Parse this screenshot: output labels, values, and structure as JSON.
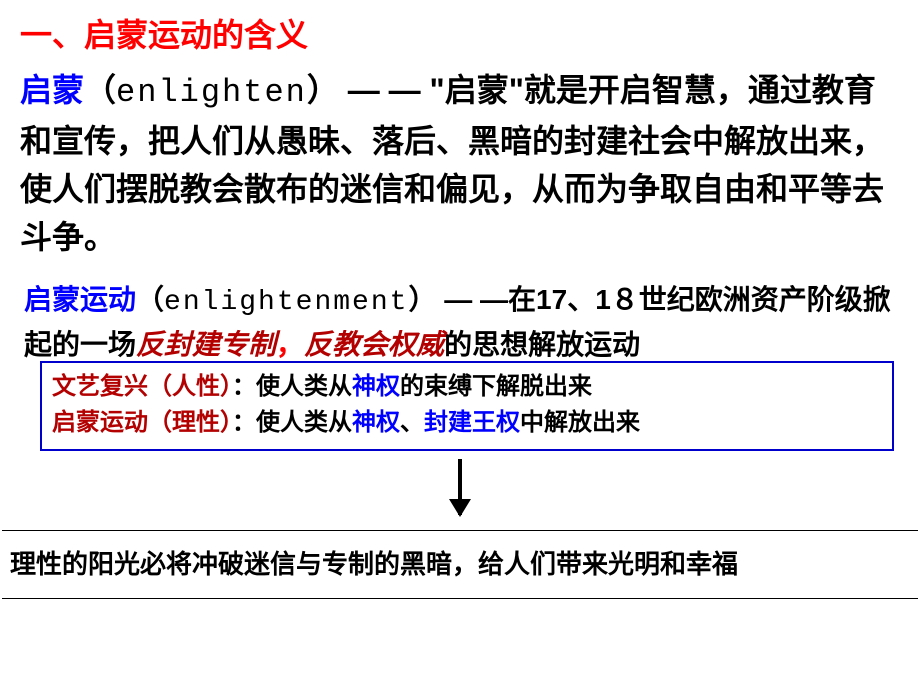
{
  "heading": {
    "prefix": "一、",
    "title": "启蒙运动的含义",
    "color": "#ff0000"
  },
  "para1": {
    "term": "启蒙",
    "term_color": "#0000ff",
    "paren_open": "（",
    "en": "enlighten",
    "paren_close": "）",
    "dash": " — — ",
    "quote_open": "\"",
    "term2": "启蒙",
    "quote_close": "\"",
    "rest": "就是开启智慧，通过教育和宣传，把人们从愚昧、落后、黑暗的封建社会中解放出来，使人们摆脱教会散布的迷信和偏见，从而为争取自由和平等去斗争。"
  },
  "para2": {
    "term": "启蒙运动",
    "term_color": "#0000ff",
    "paren_open": "（",
    "en": "enlightenment",
    "paren_close": "）",
    "dash": " — —",
    "pre": "在17、1８世纪欧洲资产阶级掀起的一场",
    "hl1": "反封建专制",
    "sep": "，",
    "hl2": "反教会权威",
    "post": "的思想解放运动",
    "hl_color": "#b30000"
  },
  "box": {
    "border_color": "#0000cc",
    "line1": {
      "label": "文艺复兴（人性）",
      "label_color": "#b30000",
      "colon": "：",
      "pre": "使人类从",
      "hl": "神权",
      "hl_color": "#0000ff",
      "post": "的束缚下解脱出来"
    },
    "line2": {
      "label": "启蒙运动（理性）",
      "label_color": "#b30000",
      "colon": "：",
      "pre": "使人类从",
      "hl1": "神权",
      "mid": "、",
      "hl2": "封建王权",
      "hl_color": "#0000ff",
      "post": "中解放出来"
    }
  },
  "bottom": {
    "text": "理性的阳光必将冲破迷信与专制的黑暗，给人们带来光明和幸福"
  },
  "colors": {
    "red": "#ff0000",
    "blue": "#0000ff",
    "darkred": "#b30000",
    "bg": "#ffffff",
    "black": "#000000"
  }
}
